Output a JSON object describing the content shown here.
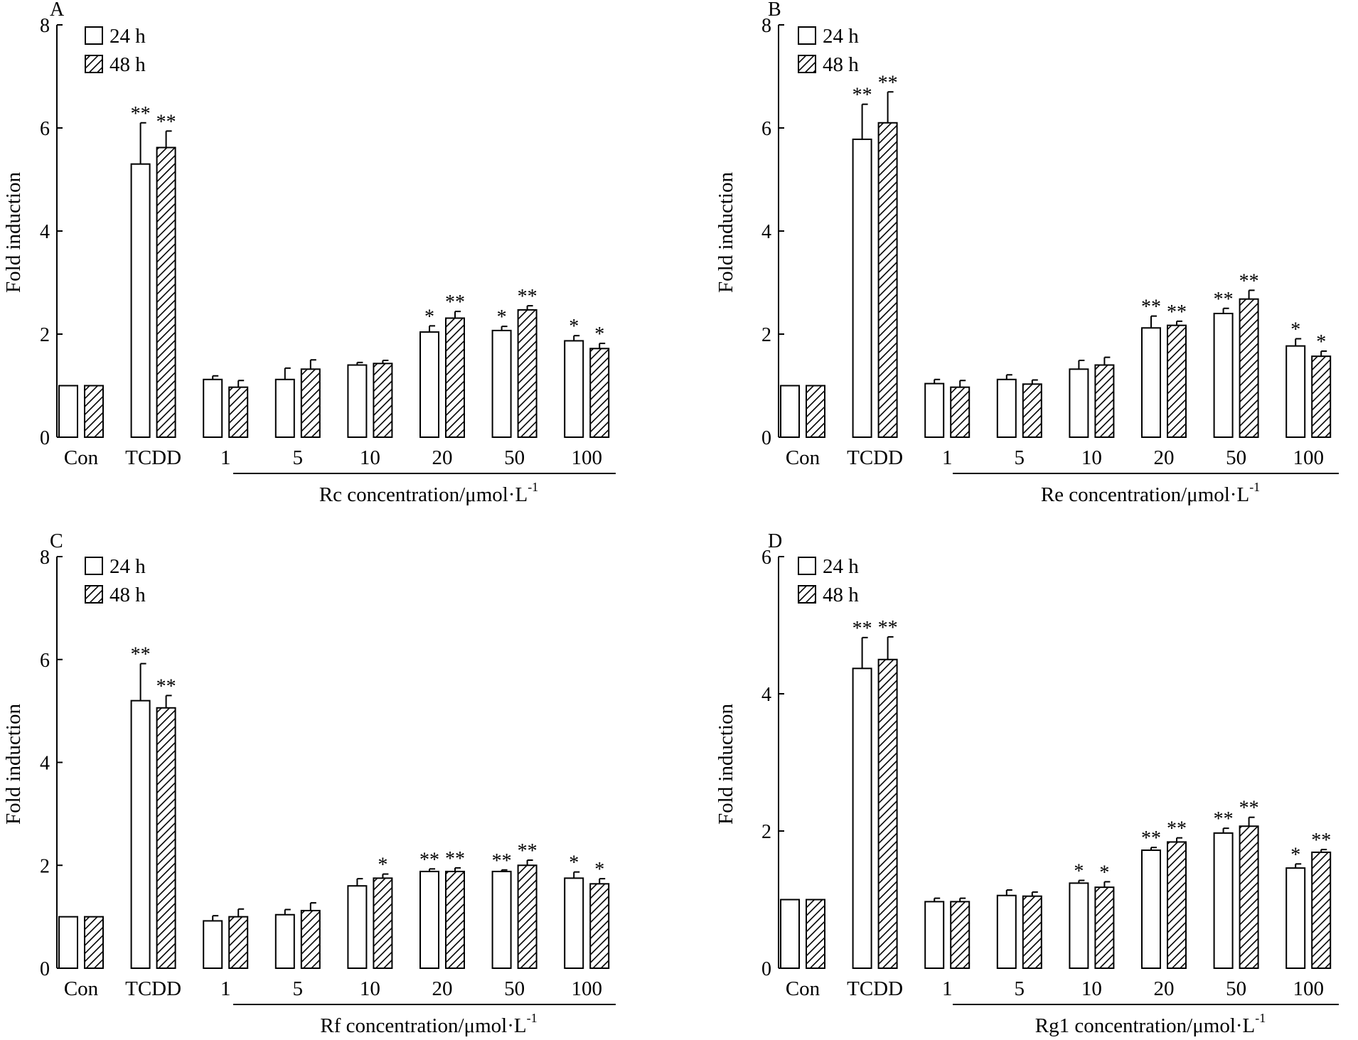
{
  "chart_data": [
    {
      "panel": "A",
      "type": "bar",
      "ylabel": "Fold induction",
      "xlabel": "Rc concentration/μmol·L",
      "xlabel_sup": "-1",
      "ylim": [
        0,
        8
      ],
      "yticks": [
        0,
        2,
        4,
        6,
        8
      ],
      "categories": [
        "Con",
        "TCDD",
        "1",
        "5",
        "10",
        "20",
        "50",
        "100"
      ],
      "legend": [
        "24 h",
        "48 h"
      ],
      "series": [
        {
          "name": "24 h",
          "values": [
            1.0,
            5.3,
            1.12,
            1.12,
            1.4,
            2.04,
            2.07,
            1.87
          ],
          "errors": [
            0,
            0.8,
            0.07,
            0.22,
            0.05,
            0.12,
            0.08,
            0.1
          ],
          "sig": [
            "",
            "**",
            "",
            "",
            "",
            "*",
            "*",
            "*"
          ]
        },
        {
          "name": "48 h",
          "values": [
            1.0,
            5.62,
            0.97,
            1.32,
            1.43,
            2.31,
            2.47,
            1.72
          ],
          "errors": [
            0,
            0.32,
            0.13,
            0.18,
            0.06,
            0.13,
            0.08,
            0.1
          ],
          "sig": [
            "",
            "**",
            "",
            "",
            "",
            "**",
            "**",
            "*"
          ]
        }
      ]
    },
    {
      "panel": "B",
      "type": "bar",
      "ylabel": "Fold induction",
      "xlabel": "Re concentration/μmol·L",
      "xlabel_sup": "-1",
      "ylim": [
        0,
        8
      ],
      "yticks": [
        0,
        2,
        4,
        6,
        8
      ],
      "categories": [
        "Con",
        "TCDD",
        "1",
        "5",
        "10",
        "20",
        "50",
        "100"
      ],
      "legend": [
        "24 h",
        "48 h"
      ],
      "series": [
        {
          "name": "24 h",
          "values": [
            1.0,
            5.78,
            1.04,
            1.12,
            1.32,
            2.12,
            2.4,
            1.77
          ],
          "errors": [
            0,
            0.68,
            0.08,
            0.09,
            0.17,
            0.23,
            0.1,
            0.14
          ],
          "sig": [
            "",
            "**",
            "",
            "",
            "",
            "**",
            "**",
            "*"
          ]
        },
        {
          "name": "48 h",
          "values": [
            1.0,
            6.1,
            0.97,
            1.03,
            1.4,
            2.17,
            2.68,
            1.57
          ],
          "errors": [
            0,
            0.6,
            0.13,
            0.08,
            0.15,
            0.08,
            0.17,
            0.1
          ],
          "sig": [
            "",
            "**",
            "",
            "",
            "",
            "**",
            "**",
            "*"
          ]
        }
      ]
    },
    {
      "panel": "C",
      "type": "bar",
      "ylabel": "Fold induction",
      "xlabel": "Rf concentration/μmol·L",
      "xlabel_sup": "-1",
      "ylim": [
        0,
        8
      ],
      "yticks": [
        0,
        2,
        4,
        6,
        8
      ],
      "categories": [
        "Con",
        "TCDD",
        "1",
        "5",
        "10",
        "20",
        "50",
        "100"
      ],
      "legend": [
        "24 h",
        "48 h"
      ],
      "series": [
        {
          "name": "24 h",
          "values": [
            1.0,
            5.2,
            0.92,
            1.04,
            1.6,
            1.88,
            1.88,
            1.75
          ],
          "errors": [
            0,
            0.72,
            0.1,
            0.1,
            0.14,
            0.05,
            0.03,
            0.12
          ],
          "sig": [
            "",
            "**",
            "",
            "",
            "",
            "**",
            "**",
            "*"
          ]
        },
        {
          "name": "48 h",
          "values": [
            1.0,
            5.06,
            1.0,
            1.12,
            1.75,
            1.88,
            2.0,
            1.64
          ],
          "errors": [
            0,
            0.24,
            0.15,
            0.15,
            0.08,
            0.07,
            0.1,
            0.1
          ],
          "sig": [
            "",
            "**",
            "",
            "",
            "*",
            "**",
            "**",
            "*"
          ]
        }
      ]
    },
    {
      "panel": "D",
      "type": "bar",
      "ylabel": "Fold induction",
      "xlabel": "Rg1 concentration/μmol·L",
      "xlabel_sup": "-1",
      "ylim": [
        0,
        6
      ],
      "yticks": [
        0,
        2,
        4,
        6
      ],
      "categories": [
        "Con",
        "TCDD",
        "1",
        "5",
        "10",
        "20",
        "50",
        "100"
      ],
      "legend": [
        "24 h",
        "48 h"
      ],
      "series": [
        {
          "name": "24 h",
          "values": [
            1.0,
            4.37,
            0.97,
            1.06,
            1.24,
            1.72,
            1.97,
            1.46
          ],
          "errors": [
            0,
            0.45,
            0.05,
            0.08,
            0.04,
            0.04,
            0.07,
            0.06
          ],
          "sig": [
            "",
            "**",
            "",
            "",
            "*",
            "**",
            "**",
            "*"
          ]
        },
        {
          "name": "48 h",
          "values": [
            1.0,
            4.5,
            0.97,
            1.05,
            1.18,
            1.84,
            2.07,
            1.69
          ],
          "errors": [
            0,
            0.33,
            0.05,
            0.06,
            0.08,
            0.06,
            0.13,
            0.04
          ],
          "sig": [
            "",
            "**",
            "",
            "",
            "*",
            "**",
            "**",
            "**"
          ]
        }
      ]
    }
  ]
}
